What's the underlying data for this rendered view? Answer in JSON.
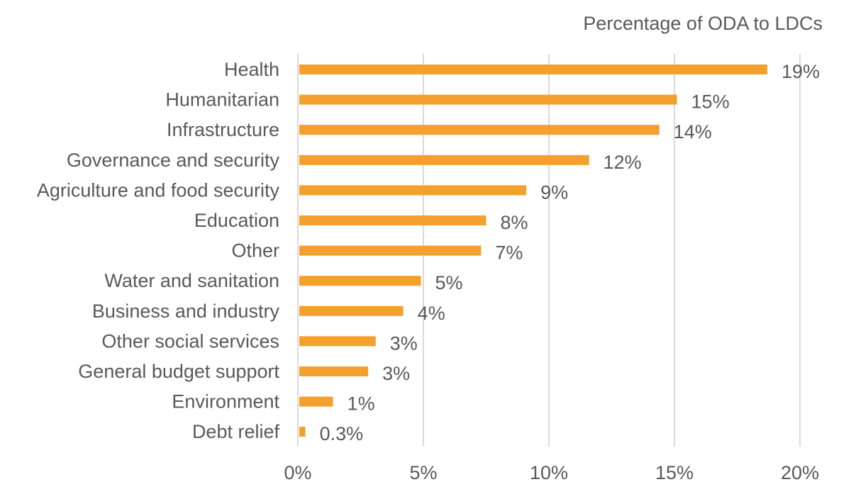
{
  "chart_data": {
    "type": "bar",
    "orientation": "horizontal",
    "title": "Percentage of ODA to LDCs",
    "categories": [
      "Health",
      "Humanitarian",
      "Infrastructure",
      "Governance and security",
      "Agriculture and food security",
      "Education",
      "Other",
      "Water and sanitation",
      "Business and industry",
      "Other social services",
      "General budget support",
      "Environment",
      "Debt relief"
    ],
    "values": [
      18.7,
      15.1,
      14.4,
      11.6,
      9.1,
      7.5,
      7.3,
      4.9,
      4.2,
      3.1,
      2.8,
      1.4,
      0.3
    ],
    "data_labels": [
      "19%",
      "15%",
      "14%",
      "12%",
      "9%",
      "8%",
      "7%",
      "5%",
      "4%",
      "3%",
      "3%",
      "1%",
      "0.3%"
    ],
    "xlim": [
      0,
      20
    ],
    "x_ticks": [
      0,
      5,
      10,
      15,
      20
    ],
    "x_tick_labels": [
      "0%",
      "5%",
      "10%",
      "15%",
      "20%"
    ],
    "xlabel": "",
    "ylabel": "",
    "grid": "vertical",
    "bar_color": "#F4A02C",
    "grid_color": "#D9D9D9",
    "text_color": "#595959"
  }
}
